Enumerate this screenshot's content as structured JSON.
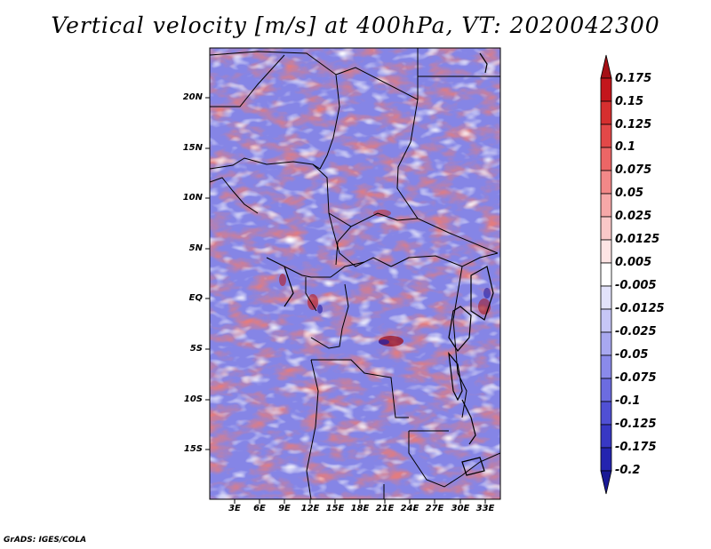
{
  "title": "Vertical velocity [m/s] at 400hPa, VT: 2020042300",
  "credit": "GrADS: IGES/COLA",
  "map": {
    "latitude_labels": [
      "20N",
      "15N",
      "10N",
      "5N",
      "EQ",
      "5S",
      "10S",
      "15S"
    ],
    "longitude_labels": [
      "3E",
      "6E",
      "9E",
      "12E",
      "15E",
      "18E",
      "21E",
      "24E",
      "27E",
      "30E",
      "33E"
    ]
  },
  "colorbar": {
    "labels": [
      "0.175",
      "0.15",
      "0.125",
      "0.1",
      "0.075",
      "0.05",
      "0.025",
      "0.0125",
      "0.005",
      "-0.005",
      "-0.0125",
      "-0.025",
      "-0.05",
      "-0.075",
      "-0.1",
      "-0.125",
      "-0.175",
      "-0.2"
    ],
    "colors": [
      "#a50f15",
      "#c4161c",
      "#d62f2f",
      "#e34848",
      "#ec6666",
      "#f28888",
      "#f6a8a8",
      "#fac8c8",
      "#fde4e4",
      "#ffffff",
      "#e2e2fb",
      "#c6c6f6",
      "#a8a8f0",
      "#8a8aea",
      "#6c6ce0",
      "#5050d4",
      "#3838c4",
      "#2424b0",
      "#1a1a96"
    ]
  },
  "field_colors": {
    "positive": "#e8787a",
    "negative": "#7c7ce6",
    "neutral": "#ffffff",
    "strong_positive": "#b81c1c",
    "strong_negative": "#2c2cb8"
  }
}
